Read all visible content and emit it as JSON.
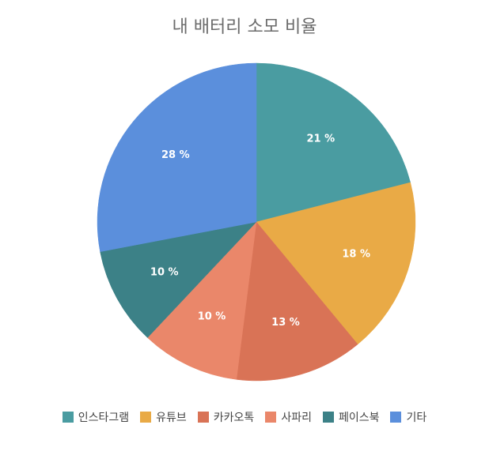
{
  "chart_data": {
    "type": "pie",
    "title": "내 배터리 소모 비율",
    "categories": [
      "인스타그램",
      "유튜브",
      "카카오톡",
      "사파리",
      "페이스북",
      "기타"
    ],
    "values": [
      21,
      18,
      13,
      10,
      10,
      28
    ],
    "value_labels": [
      "21 %",
      "18 %",
      "13 %",
      "10 %",
      "10 %",
      "28 %"
    ],
    "colors": [
      "#4a9ca1",
      "#e9aa46",
      "#d97356",
      "#ea876a",
      "#3c8187",
      "#5b8fdc"
    ],
    "legend_position": "bottom",
    "start_angle": "top, clockwise"
  }
}
